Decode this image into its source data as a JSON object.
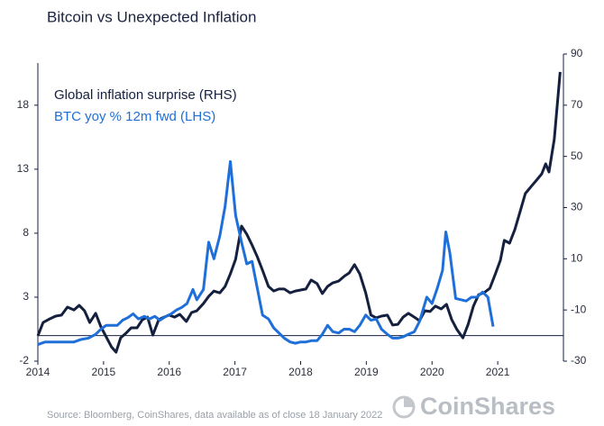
{
  "chart_data": {
    "type": "line",
    "title": "Bitcoin vs Unexpected Inflation",
    "source": "Source: Bloomberg, CoinShares, data available as of close 18 January 2022",
    "logo": "CoinShares",
    "xlim": [
      2014,
      2022
    ],
    "xticks": [
      2014,
      2015,
      2016,
      2017,
      2018,
      2019,
      2020,
      2021
    ],
    "ylim": [
      -2,
      22
    ],
    "yticks": [
      -2,
      3,
      8,
      13,
      18
    ],
    "y2lim": [
      -30,
      90
    ],
    "y2ticks": [
      -30,
      -10,
      10,
      30,
      50,
      70,
      90
    ],
    "series": [
      {
        "name": "Global inflation surprise (RHS)",
        "color": "#15203f",
        "axis": "y2",
        "x": [
          2014.0,
          2014.08,
          2014.18,
          2014.27,
          2014.36,
          2014.45,
          2014.55,
          2014.63,
          2014.71,
          2014.79,
          2014.88,
          2014.96,
          2015.04,
          2015.12,
          2015.19,
          2015.26,
          2015.34,
          2015.42,
          2015.51,
          2015.59,
          2015.67,
          2015.75,
          2015.84,
          2015.92,
          2016.0,
          2016.08,
          2016.16,
          2016.26,
          2016.34,
          2016.42,
          2016.52,
          2016.6,
          2016.68,
          2016.77,
          2016.85,
          2016.93,
          2017.01,
          2017.1,
          2017.18,
          2017.26,
          2017.34,
          2017.42,
          2017.51,
          2017.59,
          2017.67,
          2017.75,
          2017.84,
          2017.92,
          2018.0,
          2018.08,
          2018.16,
          2018.25,
          2018.33,
          2018.41,
          2018.49,
          2018.58,
          2018.66,
          2018.74,
          2018.82,
          2018.9,
          2018.99,
          2019.07,
          2019.15,
          2019.23,
          2019.32,
          2019.4,
          2019.48,
          2019.56,
          2019.64,
          2019.73,
          2019.81,
          2019.89,
          2019.97,
          2020.05,
          2020.14,
          2020.22,
          2020.3,
          2020.38,
          2020.47,
          2020.55,
          2020.63,
          2020.71,
          2020.79,
          2020.88,
          2020.96,
          2021.04,
          2021.1,
          2021.18,
          2021.26,
          2021.34,
          2021.42,
          2021.51,
          2021.59,
          2021.67,
          2021.73,
          2021.78,
          2021.86,
          2021.95
        ],
        "values": [
          -20.1,
          -14.9,
          -13.5,
          -12.4,
          -12,
          -8.9,
          -10,
          -8.2,
          -10.3,
          -14.9,
          -11.3,
          -16.6,
          -20.5,
          -24.4,
          -26.5,
          -20.9,
          -19.1,
          -17,
          -17,
          -13.8,
          -12.8,
          -19.8,
          -13.8,
          -12.8,
          -12,
          -12.8,
          -11.7,
          -14.5,
          -11,
          -10.3,
          -7.5,
          -4.7,
          -2.6,
          -3.3,
          -0.8,
          4.1,
          9.8,
          22.8,
          19.6,
          15.4,
          10.8,
          5.5,
          -0.8,
          -2.6,
          -1.8,
          -1.8,
          -3.3,
          -2.6,
          -2.2,
          -1.8,
          1.7,
          0.3,
          -3.6,
          -0.8,
          0.6,
          1.3,
          3.1,
          4.5,
          7.7,
          4.1,
          -3.3,
          -12,
          -13.1,
          -12.4,
          -12,
          -15.9,
          -15.6,
          -12.8,
          -11.3,
          -12.8,
          -14.2,
          -10.3,
          -10.6,
          -8.5,
          -9.6,
          -7.8,
          -13.8,
          -17.7,
          -20.9,
          -15.6,
          -8.5,
          -4,
          -3.3,
          -1.5,
          3.8,
          9.4,
          17.2,
          16.1,
          21.4,
          28.4,
          35.5,
          38.3,
          40.7,
          43.2,
          47.1,
          43.9,
          56.6,
          83
        ]
      },
      {
        "name": "BTC yoy % 12m fwd (LHS)",
        "color": "#1f6fd8",
        "axis": "y",
        "x": [
          2014.0,
          2014.11,
          2014.22,
          2014.33,
          2014.44,
          2014.55,
          2014.66,
          2014.77,
          2014.88,
          2014.96,
          2015.04,
          2015.12,
          2015.21,
          2015.29,
          2015.37,
          2015.45,
          2015.53,
          2015.62,
          2015.7,
          2015.78,
          2015.86,
          2015.95,
          2016.03,
          2016.11,
          2016.19,
          2016.27,
          2016.36,
          2016.42,
          2016.52,
          2016.6,
          2016.68,
          2016.77,
          2016.85,
          2016.93,
          2017.01,
          2017.1,
          2017.18,
          2017.26,
          2017.34,
          2017.42,
          2017.51,
          2017.59,
          2017.67,
          2017.75,
          2017.84,
          2017.92,
          2018.0,
          2018.08,
          2018.16,
          2018.25,
          2018.33,
          2018.41,
          2018.49,
          2018.58,
          2018.66,
          2018.74,
          2018.82,
          2018.9,
          2018.99,
          2019.07,
          2019.15,
          2019.23,
          2019.32,
          2019.4,
          2019.48,
          2019.56,
          2019.64,
          2019.73,
          2019.81,
          2019.92,
          2020.0,
          2020.08,
          2020.16,
          2020.21,
          2020.27,
          2020.36,
          2020.44,
          2020.52,
          2020.6,
          2020.68,
          2020.77,
          2020.85,
          2020.93
        ],
        "values": [
          -0.7,
          -0.5,
          -0.5,
          -0.5,
          -0.5,
          -0.5,
          -0.3,
          -0.2,
          0.1,
          0.5,
          0.8,
          0.8,
          0.8,
          1.2,
          1.4,
          1.7,
          1.3,
          1.5,
          1.3,
          1.5,
          1.2,
          1.5,
          1.7,
          2,
          2.2,
          2.5,
          3.6,
          2.8,
          3.6,
          7.3,
          6,
          7.8,
          10.1,
          13.6,
          9.4,
          7.3,
          5.6,
          5.8,
          3.7,
          1.6,
          1.3,
          0.6,
          0.2,
          -0.2,
          -0.5,
          -0.6,
          -0.5,
          -0.5,
          -0.4,
          -0.4,
          0.1,
          0.8,
          0.3,
          0.2,
          0.5,
          0.5,
          0.3,
          0.8,
          1.6,
          1.2,
          1.3,
          0.5,
          0.1,
          -0.2,
          -0.2,
          -0.1,
          0.1,
          0.3,
          1.1,
          3,
          2.5,
          3.7,
          5.1,
          8.1,
          6.5,
          2.9,
          2.8,
          2.7,
          3,
          3,
          3.4,
          3,
          0.7
        ]
      }
    ]
  }
}
